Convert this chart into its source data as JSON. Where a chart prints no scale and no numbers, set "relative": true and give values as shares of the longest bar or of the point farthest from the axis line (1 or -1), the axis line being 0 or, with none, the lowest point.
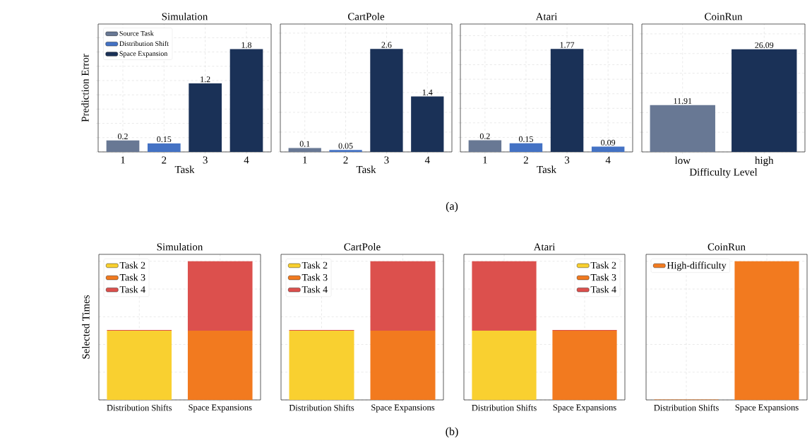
{
  "chart_data": [
    {
      "type": "bar",
      "title": "Simulation",
      "xlabel": "Task",
      "ylabel": "Prediction Error",
      "categories": [
        "1",
        "2",
        "3",
        "4"
      ],
      "series": [
        {
          "name": "Source Task",
          "color": "#687894",
          "values": [
            0.2,
            null,
            null,
            null
          ]
        },
        {
          "name": "Distribution Shift",
          "color": "#4472c4",
          "values": [
            null,
            0.15,
            null,
            null
          ]
        },
        {
          "name": "Space Expansion",
          "color": "#1a3157",
          "values": [
            null,
            null,
            1.2,
            1.8
          ]
        }
      ],
      "ylim": [
        0,
        2.24
      ],
      "yticks": [
        {
          "value": 0,
          "label": null
        },
        {
          "value": 0.25,
          "label": null
        },
        {
          "value": 0.5,
          "label": null
        },
        {
          "value": 0.75,
          "label": null
        },
        {
          "value": 1.0,
          "label": null
        },
        {
          "value": 1.25,
          "label": null
        },
        {
          "value": 1.5,
          "label": null
        },
        {
          "value": 1.75,
          "label": null
        },
        {
          "value": 2.0,
          "label": null
        }
      ],
      "tick_labels": "x",
      "grid": true,
      "legend": "top left",
      "data_labels": true,
      "annotations": [
        "(a)"
      ]
    },
    {
      "type": "bar",
      "title": "CartPole",
      "xlabel": "Task",
      "categories": [
        "1",
        "2",
        "3",
        "4"
      ],
      "series": [
        {
          "color": "#687894",
          "values": [
            0.1,
            null,
            null,
            null
          ]
        },
        {
          "color": "#4472c4",
          "values": [
            null,
            0.05,
            null,
            null
          ]
        },
        {
          "color": "#1a3157",
          "values": [
            null,
            null,
            2.6,
            1.4
          ]
        }
      ],
      "ylim": [
        0,
        3.23
      ],
      "yticks": [
        {
          "value": 0,
          "label": null
        },
        {
          "value": 0.5,
          "label": null
        },
        {
          "value": 1.0,
          "label": null
        },
        {
          "value": 1.5,
          "label": null
        },
        {
          "value": 2.0,
          "label": null
        },
        {
          "value": 2.5,
          "label": null
        },
        {
          "value": 3.0,
          "label": null
        }
      ],
      "tick_labels": "x",
      "grid": true,
      "data_labels": true
    },
    {
      "type": "bar",
      "title": "Atari",
      "xlabel": "Task",
      "categories": [
        "1",
        "2",
        "3",
        "4"
      ],
      "series": [
        {
          "color": "#687894",
          "values": [
            0.2,
            null,
            null,
            null
          ]
        },
        {
          "color": "#4472c4",
          "values": [
            null,
            0.15,
            null,
            0.09
          ]
        },
        {
          "color": "#1a3157",
          "values": [
            null,
            null,
            1.77,
            null
          ]
        }
      ],
      "ylim": [
        0,
        2.2
      ],
      "yticks": [
        {
          "value": 0,
          "label": null
        },
        {
          "value": 0.25,
          "label": null
        },
        {
          "value": 0.5,
          "label": null
        },
        {
          "value": 0.75,
          "label": null
        },
        {
          "value": 1.0,
          "label": null
        },
        {
          "value": 1.25,
          "label": null
        },
        {
          "value": 1.5,
          "label": null
        },
        {
          "value": 1.75,
          "label": null
        },
        {
          "value": 2.0,
          "label": null
        }
      ],
      "tick_labels": "x",
      "grid": true,
      "data_labels": true
    },
    {
      "type": "bar",
      "title": "CoinRun",
      "xlabel": "Difficulty Level",
      "categories": [
        "low",
        "high"
      ],
      "series": [
        {
          "color": "#687894",
          "values": [
            11.91,
            null
          ]
        },
        {
          "color": "#1a3157",
          "values": [
            null,
            26.09
          ]
        }
      ],
      "ylim": [
        0,
        32.5
      ],
      "yticks": [
        {
          "value": 0,
          "label": null
        },
        {
          "value": 5,
          "label": null
        },
        {
          "value": 10,
          "label": null
        },
        {
          "value": 15,
          "label": null
        },
        {
          "value": 20,
          "label": null
        },
        {
          "value": 25,
          "label": null
        },
        {
          "value": 30,
          "label": null
        }
      ],
      "tick_labels": "x",
      "grid": true,
      "data_labels": true
    },
    {
      "type": "bar",
      "title": "Simulation",
      "ylabel": "Selected Times",
      "categories": [
        "Distribution Shifts",
        "Space Expansions"
      ],
      "series": [
        {
          "name": "Task 2",
          "color": "#f9d030",
          "values": [
            0.5,
            null
          ]
        },
        {
          "name": "Task 3",
          "color": "#f27a1f",
          "values": [
            null,
            0.5
          ]
        },
        {
          "name": "Task 4",
          "color": "#dc504d",
          "values": [
            0.005,
            0.5
          ]
        }
      ],
      "stacked": true,
      "relative": true,
      "grid": true,
      "legend": "top left",
      "annotations": [
        "(b)"
      ]
    },
    {
      "type": "bar",
      "title": "CartPole",
      "categories": [
        "Distribution Shifts",
        "Space Expansions"
      ],
      "series": [
        {
          "name": "Task 2",
          "color": "#f9d030",
          "values": [
            0.5,
            null
          ]
        },
        {
          "name": "Task 3",
          "color": "#f27a1f",
          "values": [
            null,
            0.5
          ]
        },
        {
          "name": "Task 4",
          "color": "#dc504d",
          "values": [
            0.005,
            0.5
          ]
        }
      ],
      "stacked": true,
      "relative": true,
      "grid": true,
      "legend": "top left"
    },
    {
      "type": "bar",
      "title": "Atari",
      "categories": [
        "Distribution Shifts",
        "Space Expansions"
      ],
      "series": [
        {
          "name": "Task 2",
          "color": "#f9d030",
          "values": [
            0.5,
            null
          ]
        },
        {
          "name": "Task 3",
          "color": "#f27a1f",
          "values": [
            null,
            0.5
          ]
        },
        {
          "name": "Task 4",
          "color": "#dc504d",
          "values": [
            0.5,
            0.005
          ]
        }
      ],
      "stacked": true,
      "relative": true,
      "grid": true,
      "legend": "top right"
    },
    {
      "type": "bar",
      "title": "CoinRun",
      "categories": [
        "Distribution Shifts",
        "Space Expansions"
      ],
      "series": [
        {
          "name": "High-difficulty",
          "color": "#f27a1f",
          "values": [
            0.003,
            1
          ]
        }
      ],
      "stacked": true,
      "relative": true,
      "grid": true,
      "legend": "top left"
    }
  ]
}
